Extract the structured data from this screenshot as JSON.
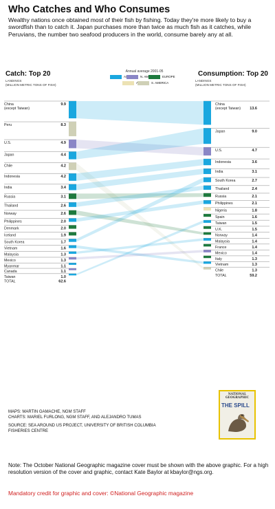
{
  "title": "Who Catches and Who Consumes",
  "intro": "Wealthy nations once obtained most of their fish by fishing. Today they're more likely to buy a swordfish than to catch it. Japan purchases more than twice as much fish as it catches, while Peruvians, the number two seafood producers in the world, consume barely any at all.",
  "left_header": {
    "title": "Catch: Top 20",
    "sub1": "LANDINGS",
    "sub2": "(MILLION METRIC TONS OF FISH)"
  },
  "right_header": {
    "title": "Consumption: Top 20",
    "sub1": "LANDINGS",
    "sub2": "(MILLION METRIC TONS OF FISH)"
  },
  "legend": {
    "title": "Annual average 2001-05",
    "items": [
      {
        "label": "ASIA",
        "color": "#1aa7df"
      },
      {
        "label": "N. AMERICA",
        "color": "#8a86c6"
      },
      {
        "label": "EUROPE",
        "color": "#1e7a3e"
      },
      {
        "label": "AFRICA",
        "color": "#ece2b4"
      },
      {
        "label": "S. AMERICA",
        "color": "#cfd0b6"
      }
    ]
  },
  "chart_data": {
    "type": "flow",
    "title": "Who Catches and Who Consumes",
    "unit": "million metric tons of fish",
    "catch": [
      {
        "country": "China\n(except Taiwan)",
        "value": 9.9,
        "region": "ASIA"
      },
      {
        "country": "Peru",
        "value": 8.3,
        "region": "S. AMERICA"
      },
      {
        "country": "U.S.",
        "value": 4.9,
        "region": "N. AMERICA"
      },
      {
        "country": "Japan",
        "value": 4.4,
        "region": "ASIA"
      },
      {
        "country": "Chile",
        "value": 4.2,
        "region": "S. AMERICA"
      },
      {
        "country": "Indonesia",
        "value": 4.2,
        "region": "ASIA"
      },
      {
        "country": "India",
        "value": 3.4,
        "region": "ASIA"
      },
      {
        "country": "Russia",
        "value": 3.1,
        "region": "EUROPE"
      },
      {
        "country": "Thailand",
        "value": 2.6,
        "region": "ASIA"
      },
      {
        "country": "Norway",
        "value": 2.6,
        "region": "EUROPE"
      },
      {
        "country": "Philippines",
        "value": 2.0,
        "region": "ASIA"
      },
      {
        "country": "Denmark",
        "value": 2.0,
        "region": "EUROPE"
      },
      {
        "country": "Iceland",
        "value": 1.9,
        "region": "EUROPE"
      },
      {
        "country": "South Korea",
        "value": 1.7,
        "region": "ASIA"
      },
      {
        "country": "Vietnam",
        "value": 1.6,
        "region": "ASIA"
      },
      {
        "country": "Malaysia",
        "value": 1.3,
        "region": "ASIA"
      },
      {
        "country": "Mexico",
        "value": 1.3,
        "region": "N. AMERICA"
      },
      {
        "country": "Myanmar",
        "value": 1.1,
        "region": "ASIA"
      },
      {
        "country": "Canada",
        "value": 1.1,
        "region": "N. AMERICA"
      },
      {
        "country": "Taiwan",
        "value": 1.0,
        "region": "ASIA"
      }
    ],
    "catch_total": {
      "label": "TOTAL",
      "value": 62.6
    },
    "consumption": [
      {
        "country": "China\n(except Taiwan)",
        "value": 13.6,
        "region": "ASIA"
      },
      {
        "country": "Japan",
        "value": 9.0,
        "region": "ASIA"
      },
      {
        "country": "U.S.",
        "value": 4.7,
        "region": "N. AMERICA"
      },
      {
        "country": "Indonesia",
        "value": 3.6,
        "region": "ASIA"
      },
      {
        "country": "India",
        "value": 3.1,
        "region": "ASIA"
      },
      {
        "country": "South Korea",
        "value": 2.7,
        "region": "ASIA"
      },
      {
        "country": "Thailand",
        "value": 2.4,
        "region": "ASIA"
      },
      {
        "country": "Russia",
        "value": 2.1,
        "region": "EUROPE"
      },
      {
        "country": "Philippines",
        "value": 2.1,
        "region": "ASIA"
      },
      {
        "country": "Nigeria",
        "value": 1.8,
        "region": "AFRICA"
      },
      {
        "country": "Spain",
        "value": 1.6,
        "region": "EUROPE"
      },
      {
        "country": "Taiwan",
        "value": 1.5,
        "region": "ASIA"
      },
      {
        "country": "U.K.",
        "value": 1.5,
        "region": "EUROPE"
      },
      {
        "country": "Norway",
        "value": 1.4,
        "region": "EUROPE"
      },
      {
        "country": "Malaysia",
        "value": 1.4,
        "region": "ASIA"
      },
      {
        "country": "France",
        "value": 1.4,
        "region": "EUROPE"
      },
      {
        "country": "Mexico",
        "value": 1.4,
        "region": "N. AMERICA"
      },
      {
        "country": "Italy",
        "value": 1.3,
        "region": "EUROPE"
      },
      {
        "country": "Vietnam",
        "value": 1.3,
        "region": "ASIA"
      },
      {
        "country": "Chile",
        "value": 1.3,
        "region": "S. AMERICA"
      }
    ],
    "consumption_total": {
      "label": "TOTAL",
      "value": 59.2
    },
    "links": [
      "China\n(except Taiwan)",
      "U.S.",
      "Japan",
      "Chile",
      "Indonesia",
      "India",
      "Russia",
      "Thailand",
      "Norway",
      "Philippines",
      "South Korea",
      "Vietnam",
      "Malaysia",
      "Mexico",
      "Taiwan"
    ]
  },
  "credits": {
    "line1": "MAPS: MARTIN GAMACHE, NGM STAFF",
    "line2": "CHARTS: MARIEL FURLONG, NGM STAFF, AND ALEJANDRO TUMAS",
    "line3": "SOURCE: SEA AROUND US PROJECT, UNIVERSITY OF BRITISH COLUMBIA",
    "line4": "FISHERIES CENTRE"
  },
  "cover": {
    "masthead1": "NATIONAL",
    "masthead2": "GEOGRAPHIC",
    "headline": "THE SPILL"
  },
  "note": "Note: The October National Geographic magazine cover must be shown with the above graphic. For a high resolution version of the cover and graphic, contact Kate Baylor at kbaylor@ngs.org.",
  "mandatory": "Mandatory credit for graphic and cover: ©National Geographic magazine"
}
